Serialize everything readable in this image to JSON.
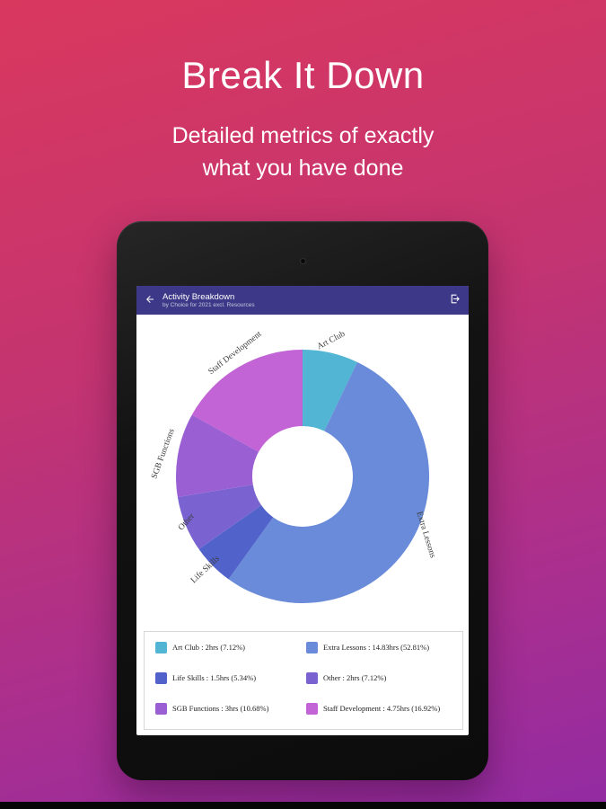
{
  "header": {
    "title": "Break It Down",
    "subtitle_lines": [
      "Detailed metrics of exactly",
      "what you have done"
    ]
  },
  "app": {
    "appbar": {
      "title": "Activity Breakdown",
      "subtitle": "by Choice for 2021 excl. Resources"
    }
  },
  "chart_data": {
    "type": "pie",
    "variant": "donut",
    "title": "Activity Breakdown",
    "unit": "hours",
    "start_angle_deg": 0,
    "direction": "clockwise",
    "segments": [
      {
        "label": "Art Club",
        "hours": 2,
        "percent": 7.12,
        "color": "#52b5d4",
        "legend_label": "Art Club : 2hrs (7.12%)"
      },
      {
        "label": "Extra Lessons",
        "hours": 14.83,
        "percent": 52.81,
        "color": "#6a8bd9",
        "legend_label": "Extra Lessons : 14.83hrs (52.81%)"
      },
      {
        "label": "Life Skills",
        "hours": 1.5,
        "percent": 5.34,
        "color": "#5163cb",
        "legend_label": "Life Skills : 1.5hrs (5.34%)"
      },
      {
        "label": "Other",
        "hours": 2,
        "percent": 7.12,
        "color": "#7a63d1",
        "legend_label": "Other : 2hrs (7.12%)"
      },
      {
        "label": "SGB Functions",
        "hours": 3,
        "percent": 10.68,
        "color": "#9a5fd2",
        "legend_label": "SGB Functions : 3hrs (10.68%)"
      },
      {
        "label": "Staff Development",
        "hours": 4.75,
        "percent": 16.92,
        "color": "#c263d6",
        "legend_label": "Staff Development : 4.75hrs (16.92%)"
      }
    ]
  },
  "colors": {
    "bg_gradient_top": "#d9385e",
    "bg_gradient_bottom": "#922ba2",
    "appbar": "#3d3887",
    "screen_bg": "#ffffff",
    "tablet_bezel": "#121212"
  }
}
